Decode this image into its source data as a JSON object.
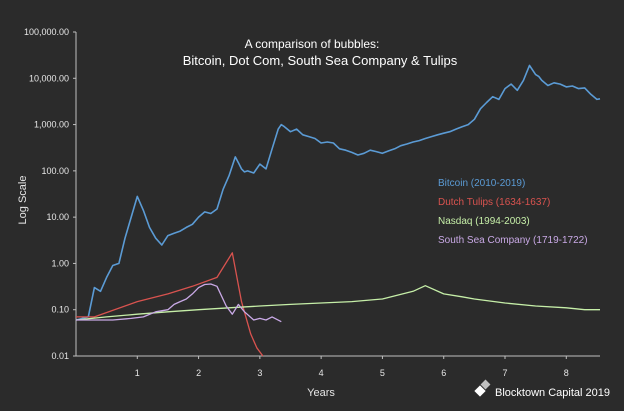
{
  "chart_data": {
    "type": "line",
    "title": "A comparison of bubbles:",
    "subtitle": "Bitcoin, Dot Com, South Sea Company & Tulips",
    "xlabel": "Years",
    "ylabel": "Log Scale",
    "y_scale": "log",
    "ylim": [
      0.01,
      100000
    ],
    "xlim": [
      0,
      8.55
    ],
    "x_ticks": [
      1,
      2,
      3,
      4,
      5,
      6,
      7,
      8
    ],
    "y_ticks": [
      {
        "value": 0.01,
        "label": "0.01"
      },
      {
        "value": 0.1,
        "label": "0.10"
      },
      {
        "value": 1,
        "label": "1.00"
      },
      {
        "value": 10,
        "label": "10.00"
      },
      {
        "value": 100,
        "label": "100.00"
      },
      {
        "value": 1000,
        "label": "1,000.00"
      },
      {
        "value": 10000,
        "label": "10,000.00"
      },
      {
        "value": 100000,
        "label": "100,000.00"
      }
    ],
    "grid": false,
    "legend_position": "right",
    "series": [
      {
        "name": "Bitcoin (2010-2019)",
        "color": "#5b9bd5",
        "x": [
          0,
          0.2,
          0.3,
          0.4,
          0.5,
          0.6,
          0.7,
          0.8,
          0.9,
          1.0,
          1.1,
          1.2,
          1.3,
          1.4,
          1.5,
          1.6,
          1.7,
          1.8,
          1.9,
          2.0,
          2.1,
          2.2,
          2.3,
          2.4,
          2.5,
          2.6,
          2.65,
          2.7,
          2.75,
          2.8,
          2.9,
          3.0,
          3.1,
          3.2,
          3.3,
          3.35,
          3.4,
          3.5,
          3.6,
          3.7,
          3.8,
          3.9,
          4.0,
          4.1,
          4.2,
          4.3,
          4.4,
          4.5,
          4.6,
          4.7,
          4.8,
          4.9,
          5.0,
          5.1,
          5.2,
          5.3,
          5.4,
          5.5,
          5.6,
          5.7,
          5.8,
          5.9,
          6.0,
          6.1,
          6.2,
          6.3,
          6.4,
          6.5,
          6.6,
          6.7,
          6.8,
          6.9,
          7.0,
          7.1,
          7.2,
          7.3,
          7.4,
          7.45,
          7.5,
          7.55,
          7.6,
          7.7,
          7.8,
          7.9,
          8.0,
          8.1,
          8.2,
          8.3,
          8.4,
          8.5,
          8.55
        ],
        "values": [
          0.06,
          0.07,
          0.3,
          0.25,
          0.5,
          0.9,
          1.0,
          3.5,
          10,
          28,
          14,
          6,
          3.5,
          2.5,
          4,
          4.5,
          5,
          6,
          7,
          10,
          13,
          12,
          15,
          40,
          80,
          200,
          150,
          110,
          95,
          100,
          90,
          140,
          110,
          300,
          800,
          1000,
          900,
          700,
          800,
          600,
          550,
          500,
          400,
          420,
          400,
          300,
          280,
          250,
          220,
          240,
          280,
          260,
          240,
          270,
          300,
          350,
          380,
          420,
          450,
          500,
          550,
          600,
          650,
          700,
          800,
          900,
          1000,
          1300,
          2200,
          3000,
          4000,
          3500,
          6000,
          7500,
          5500,
          9000,
          19000,
          15000,
          12000,
          11000,
          9000,
          7000,
          8000,
          7500,
          6500,
          6800,
          6000,
          6200,
          4500,
          3500,
          3600
        ]
      },
      {
        "name": "Dutch Tulips (1634-1637)",
        "color": "#d9534f",
        "x": [
          0,
          0.3,
          1.0,
          1.5,
          1.9,
          2.3,
          2.55,
          2.7,
          2.85,
          2.95,
          3.05
        ],
        "values": [
          0.07,
          0.07,
          0.15,
          0.22,
          0.32,
          0.5,
          1.7,
          0.15,
          0.03,
          0.015,
          0.006
        ]
      },
      {
        "name": "Nasdaq (1994-2003)",
        "color": "#c6efa8",
        "x": [
          0,
          0.5,
          1.0,
          1.5,
          2.0,
          2.5,
          3.0,
          3.5,
          4.0,
          4.5,
          5.0,
          5.5,
          5.7,
          6.0,
          6.3,
          6.5,
          7.0,
          7.5,
          8.0,
          8.3,
          8.55
        ],
        "values": [
          0.06,
          0.07,
          0.08,
          0.09,
          0.1,
          0.11,
          0.12,
          0.13,
          0.14,
          0.15,
          0.17,
          0.25,
          0.33,
          0.22,
          0.19,
          0.17,
          0.14,
          0.12,
          0.11,
          0.1,
          0.1
        ]
      },
      {
        "name": "South Sea Company (1719-1722)",
        "color": "#c9a9e6",
        "x": [
          0,
          0.3,
          0.6,
          0.9,
          1.1,
          1.3,
          1.5,
          1.6,
          1.7,
          1.8,
          1.9,
          2.0,
          2.1,
          2.2,
          2.3,
          2.45,
          2.55,
          2.65,
          2.75,
          2.9,
          3.0,
          3.1,
          3.2,
          3.35
        ],
        "values": [
          0.06,
          0.06,
          0.06,
          0.065,
          0.07,
          0.09,
          0.1,
          0.13,
          0.15,
          0.17,
          0.22,
          0.3,
          0.35,
          0.36,
          0.32,
          0.12,
          0.08,
          0.13,
          0.09,
          0.06,
          0.065,
          0.06,
          0.07,
          0.055
        ]
      }
    ]
  },
  "branding": {
    "text": "Blocktown Capital 2019"
  }
}
